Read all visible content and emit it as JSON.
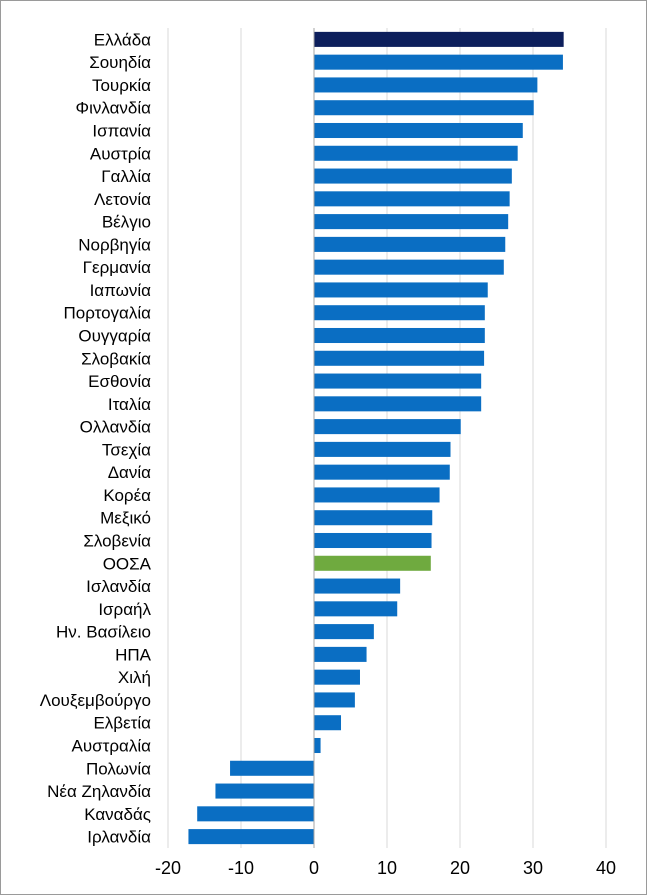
{
  "chart_data": {
    "type": "bar",
    "orientation": "horizontal",
    "title": "",
    "xlabel": "",
    "ylabel": "",
    "xlim": [
      -20,
      40
    ],
    "x_ticks": [
      -20,
      -10,
      0,
      10,
      20,
      30,
      40
    ],
    "x_tick_labels": [
      "-20",
      "-10",
      "0",
      "10",
      "20",
      "30",
      "40"
    ],
    "grid": "vertical",
    "legend": "none",
    "colors": {
      "default": "#0a6ec3",
      "highlight_greece": "#0d1f5c",
      "highlight_oecd": "#6faa3f",
      "grid": "#d9d9d9",
      "axis": "#a6a6a6"
    },
    "categories": [
      "Ελλάδα",
      "Σουηδία",
      "Τουρκία",
      "Φινλανδία",
      "Ισπανία",
      "Αυστρία",
      "Γαλλία",
      "Λετονία",
      "Βέλγιο",
      "Νορβηγία",
      "Γερμανία",
      "Ιαπωνία",
      "Πορτογαλία",
      "Ουγγαρία",
      "Σλοβακία",
      "Εσθονία",
      "Ιταλία",
      "Ολλανδία",
      "Τσεχία",
      "Δανία",
      "Κορέα",
      "Μεξικό",
      "Σλοβενία",
      "ΟΟΣΑ",
      "Ισλανδία",
      "Ισραήλ",
      "Ην. Βασίλειο",
      "ΗΠΑ",
      "Χιλή",
      "Λουξεμβούργο",
      "Ελβετία",
      "Αυστραλία",
      "Πολωνία",
      "Νέα Ζηλανδία",
      "Καναδάς",
      "Ιρλανδία"
    ],
    "values": [
      34.2,
      34.1,
      30.6,
      30.1,
      28.6,
      27.9,
      27.1,
      26.8,
      26.6,
      26.2,
      26.0,
      23.8,
      23.4,
      23.4,
      23.3,
      22.9,
      22.9,
      20.1,
      18.7,
      18.6,
      17.2,
      16.2,
      16.1,
      16.0,
      11.8,
      11.4,
      8.2,
      7.2,
      6.3,
      5.6,
      3.7,
      0.9,
      -11.5,
      -13.5,
      -16.0,
      -17.2
    ],
    "bar_color_keys": [
      "highlight_greece",
      "default",
      "default",
      "default",
      "default",
      "default",
      "default",
      "default",
      "default",
      "default",
      "default",
      "default",
      "default",
      "default",
      "default",
      "default",
      "default",
      "default",
      "default",
      "default",
      "default",
      "default",
      "default",
      "highlight_oecd",
      "default",
      "default",
      "default",
      "default",
      "default",
      "default",
      "default",
      "default",
      "default",
      "default",
      "default",
      "default"
    ]
  }
}
